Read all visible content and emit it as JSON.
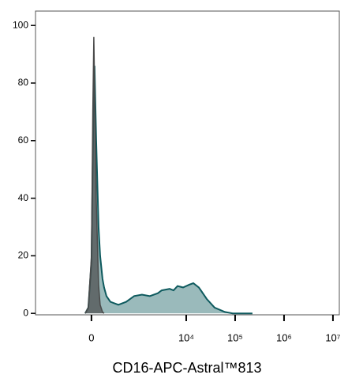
{
  "chart_data": {
    "type": "area",
    "xlabel": "CD16-APC-Astral™813",
    "xscale": "biexponential",
    "xlim": [
      -1600,
      13500000
    ],
    "xticks": [
      0,
      {
        "value": 10000,
        "label": "10⁴"
      },
      {
        "value": 100000,
        "label": "10⁵"
      },
      {
        "value": 1000000,
        "label": "10⁶"
      },
      {
        "value": 10000000,
        "label": "10⁷"
      }
    ],
    "ylim": [
      -0.5,
      105
    ],
    "yticks": [
      0,
      20,
      40,
      60,
      80,
      100
    ],
    "series": [
      {
        "color": "#0e5a5e",
        "x": [
          -70,
          -34,
          0,
          15,
          26,
          34,
          52,
          79,
          97,
          126,
          146,
          177,
          235,
          377,
          570,
          846,
          1236,
          1800,
          2620,
          3150,
          4580,
          5510,
          6640,
          8620,
          11600,
          13970,
          18130,
          26300,
          38100,
          61900,
          89400,
          226000
        ],
        "values": [
          0,
          2,
          18,
          55,
          80,
          86,
          60,
          30,
          20,
          12,
          9,
          6,
          4,
          3,
          4,
          6,
          6.5,
          6,
          7,
          8,
          8.5,
          8,
          9.5,
          9,
          10,
          10.5,
          9,
          5,
          2,
          0.5,
          0,
          0
        ]
      },
      {
        "color": "#4a4a4a",
        "x": [
          -70,
          -34,
          0,
          15,
          26,
          34,
          52,
          79,
          97,
          126,
          146
        ],
        "values": [
          0,
          2,
          20,
          70,
          96,
          80,
          40,
          10,
          3,
          0.5,
          0
        ]
      }
    ]
  }
}
